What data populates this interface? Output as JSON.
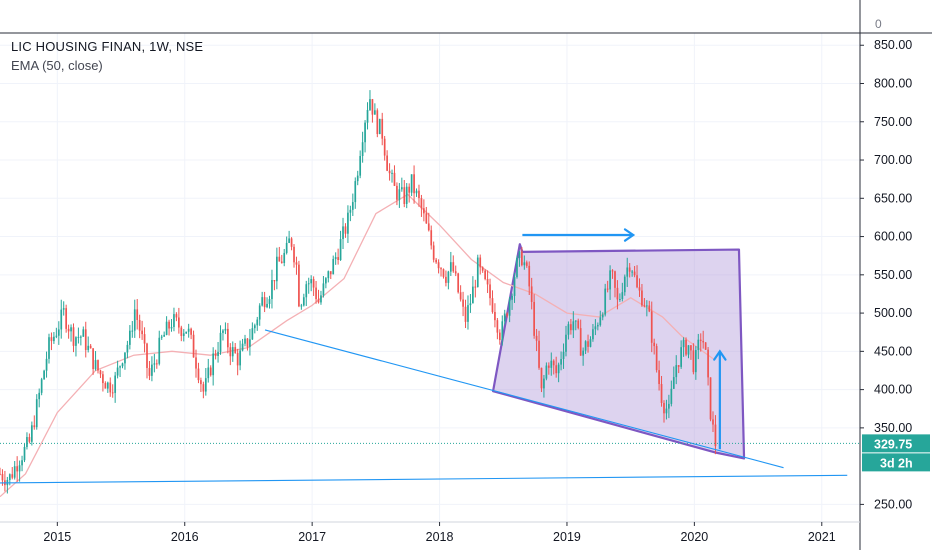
{
  "header": {
    "title": "LIC HOUSING FINAN, 1W, NSE",
    "indicator": "EMA (50, close)"
  },
  "colors": {
    "up": "#26a69a",
    "down": "#ef5350",
    "ema": "#f4b0b4",
    "trendline": "#2196f3",
    "pattern_edge": "#7e57c2",
    "pattern_fill": "#b39ddb",
    "arrow": "#2196f3",
    "grid": "#f0f3fa",
    "last_price_bg": "#26a69a"
  },
  "chart_data": {
    "type": "candlestick",
    "x_unit": "year",
    "x_ticks": [
      "2015",
      "2016",
      "2017",
      "2018",
      "2019",
      "2020",
      "2021"
    ],
    "xlim": [
      2014.55,
      2021.3
    ],
    "ylim": [
      227,
      866
    ],
    "y_ticks": [
      "850.00",
      "800.00",
      "750.00",
      "700.00",
      "650.00",
      "600.00",
      "550.00",
      "500.00",
      "450.00",
      "400.00",
      "350.00",
      "250.00"
    ],
    "y_top_tick": "0",
    "last_price": "329.75",
    "countdown": "3d 2h",
    "price_path": [
      [
        2014.55,
        290
      ],
      [
        2014.62,
        283
      ],
      [
        2014.7,
        310
      ],
      [
        2014.78,
        330
      ],
      [
        2014.86,
        395
      ],
      [
        2014.93,
        455
      ],
      [
        2015.0,
        480
      ],
      [
        2015.05,
        500
      ],
      [
        2015.12,
        470
      ],
      [
        2015.2,
        470
      ],
      [
        2015.3,
        430
      ],
      [
        2015.4,
        405
      ],
      [
        2015.45,
        410
      ],
      [
        2015.52,
        450
      ],
      [
        2015.58,
        470
      ],
      [
        2015.6,
        510
      ],
      [
        2015.66,
        470
      ],
      [
        2015.72,
        415
      ],
      [
        2015.82,
        465
      ],
      [
        2015.9,
        490
      ],
      [
        2015.98,
        480
      ],
      [
        2016.02,
        480
      ],
      [
        2016.1,
        430
      ],
      [
        2016.15,
        395
      ],
      [
        2016.22,
        440
      ],
      [
        2016.3,
        475
      ],
      [
        2016.35,
        455
      ],
      [
        2016.42,
        440
      ],
      [
        2016.5,
        465
      ],
      [
        2016.55,
        485
      ],
      [
        2016.6,
        515
      ],
      [
        2016.67,
        530
      ],
      [
        2016.72,
        560
      ],
      [
        2016.8,
        580
      ],
      [
        2016.83,
        600
      ],
      [
        2016.88,
        560
      ],
      [
        2016.9,
        510
      ],
      [
        2016.95,
        540
      ],
      [
        2017.0,
        540
      ],
      [
        2017.05,
        515
      ],
      [
        2017.12,
        545
      ],
      [
        2017.2,
        580
      ],
      [
        2017.28,
        620
      ],
      [
        2017.35,
        680
      ],
      [
        2017.38,
        720
      ],
      [
        2017.42,
        760
      ],
      [
        2017.45,
        785
      ],
      [
        2017.5,
        750
      ],
      [
        2017.55,
        735
      ],
      [
        2017.6,
        685
      ],
      [
        2017.65,
        660
      ],
      [
        2017.72,
        650
      ],
      [
        2017.78,
        670
      ],
      [
        2017.85,
        640
      ],
      [
        2017.9,
        610
      ],
      [
        2017.95,
        580
      ],
      [
        2018.0,
        565
      ],
      [
        2018.05,
        550
      ],
      [
        2018.1,
        560
      ],
      [
        2018.15,
        525
      ],
      [
        2018.2,
        490
      ],
      [
        2018.25,
        520
      ],
      [
        2018.3,
        560
      ],
      [
        2018.35,
        540
      ],
      [
        2018.42,
        510
      ],
      [
        2018.48,
        470
      ],
      [
        2018.55,
        520
      ],
      [
        2018.6,
        560
      ],
      [
        2018.65,
        575
      ],
      [
        2018.7,
        540
      ],
      [
        2018.75,
        470
      ],
      [
        2018.8,
        395
      ],
      [
        2018.85,
        440
      ],
      [
        2018.92,
        420
      ],
      [
        2019.0,
        480
      ],
      [
        2019.05,
        490
      ],
      [
        2019.12,
        450
      ],
      [
        2019.2,
        470
      ],
      [
        2019.3,
        520
      ],
      [
        2019.35,
        550
      ],
      [
        2019.4,
        510
      ],
      [
        2019.45,
        550
      ],
      [
        2019.5,
        570
      ],
      [
        2019.55,
        530
      ],
      [
        2019.6,
        520
      ],
      [
        2019.65,
        490
      ],
      [
        2019.7,
        430
      ],
      [
        2019.75,
        385
      ],
      [
        2019.8,
        370
      ],
      [
        2019.85,
        430
      ],
      [
        2019.9,
        450
      ],
      [
        2019.95,
        460
      ],
      [
        2020.0,
        430
      ],
      [
        2020.05,
        470
      ],
      [
        2020.08,
        460
      ],
      [
        2020.12,
        380
      ],
      [
        2020.16,
        330
      ]
    ],
    "ema_path": [
      [
        2014.55,
        260
      ],
      [
        2014.75,
        290
      ],
      [
        2015.0,
        370
      ],
      [
        2015.3,
        425
      ],
      [
        2015.6,
        445
      ],
      [
        2015.9,
        450
      ],
      [
        2016.2,
        445
      ],
      [
        2016.5,
        455
      ],
      [
        2016.8,
        490
      ],
      [
        2017.0,
        510
      ],
      [
        2017.25,
        545
      ],
      [
        2017.5,
        630
      ],
      [
        2017.75,
        655
      ],
      [
        2018.0,
        615
      ],
      [
        2018.25,
        570
      ],
      [
        2018.5,
        540
      ],
      [
        2018.75,
        525
      ],
      [
        2019.0,
        500
      ],
      [
        2019.25,
        495
      ],
      [
        2019.5,
        520
      ],
      [
        2019.75,
        495
      ],
      [
        2019.9,
        470
      ],
      [
        2020.15,
        440
      ]
    ],
    "trendlines": [
      {
        "from": [
          2016.63,
          478
        ],
        "to": [
          2020.7,
          298
        ]
      },
      {
        "from": [
          2014.55,
          278
        ],
        "to": [
          2021.2,
          288
        ]
      }
    ],
    "pattern_polygon": [
      [
        2018.42,
        398
      ],
      [
        2018.63,
        590
      ],
      [
        2018.65,
        580
      ],
      [
        2020.35,
        583
      ],
      [
        2020.39,
        310
      ],
      [
        2020.16,
        318
      ]
    ],
    "arrows": [
      {
        "from": [
          2018.65,
          602
        ],
        "to": [
          2019.52,
          602
        ]
      },
      {
        "from": [
          2020.2,
          322
        ],
        "to": [
          2020.2,
          450
        ]
      }
    ]
  }
}
